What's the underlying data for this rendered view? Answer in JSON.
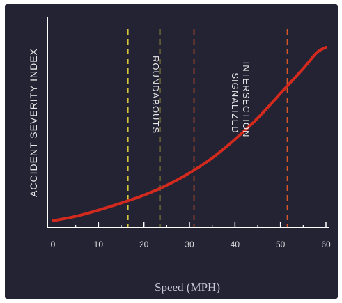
{
  "chart_data": {
    "type": "line",
    "xlabel": "Speed (MPH)",
    "ylabel": "ACCIDENT SEVERITY INDEX",
    "xlim": [
      0,
      60
    ],
    "x_ticks": [
      "0",
      "10",
      "20",
      "30",
      "40",
      "50",
      "60"
    ],
    "grid": false,
    "series": [
      {
        "color": "#d42a1e",
        "x": [
          0,
          5,
          10,
          15,
          20,
          25,
          30,
          35,
          40,
          45,
          50,
          55,
          58,
          60
        ],
        "y": [
          0.02,
          0.045,
          0.08,
          0.12,
          0.165,
          0.22,
          0.29,
          0.375,
          0.48,
          0.6,
          0.74,
          0.88,
          0.97,
          1.0
        ]
      }
    ],
    "zones": [
      {
        "label": "ROUNDABOUTS",
        "color": "#d4c83a",
        "lines_x": [
          16.5,
          23.5
        ]
      },
      {
        "label_line1": "SIGNALIZED",
        "label_line2": "INTERSECTION",
        "color": "#d8552a",
        "lines_x": [
          31,
          51.5
        ]
      }
    ]
  },
  "colors": {
    "background": "#232334",
    "axis": "#ffffff"
  }
}
